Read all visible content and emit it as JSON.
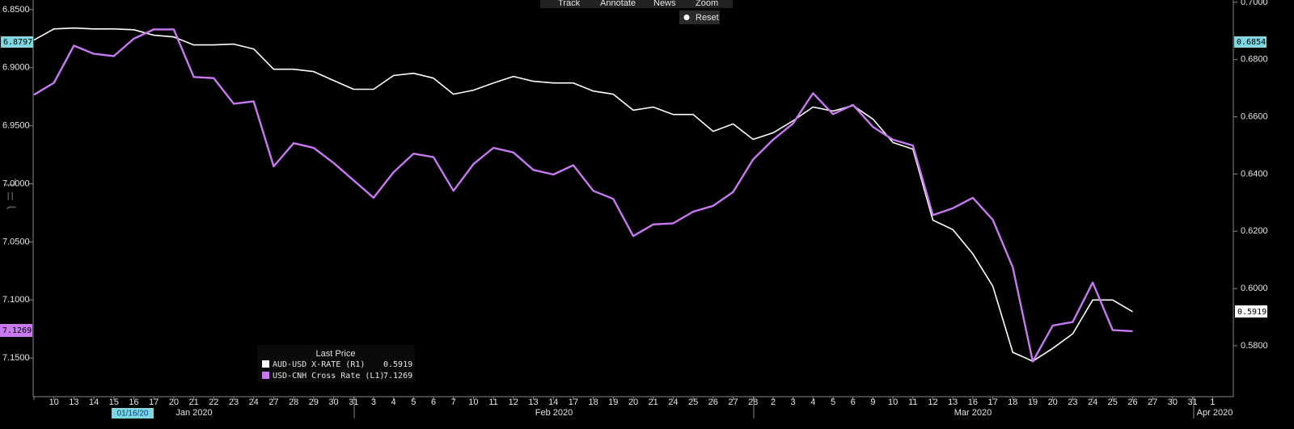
{
  "toolbar": {
    "items": [
      "Track",
      "Annotate",
      "News",
      "Zoom"
    ],
    "reset": "Reset"
  },
  "axis_label": "High = Low",
  "crosshair": {
    "date": "01/16/20",
    "left_value": 6.8797,
    "right_value": 0.6854
  },
  "legend_title": "Last Price",
  "chart_data": {
    "type": "line",
    "categories": [
      null,
      "10",
      "13",
      "14",
      "15",
      "16",
      "17",
      "20",
      "21",
      "22",
      "23",
      "24",
      "27",
      "28",
      "29",
      "30",
      "31",
      "3",
      "4",
      "5",
      "6",
      "7",
      "10",
      "11",
      "12",
      "13",
      "14",
      "17",
      "18",
      "19",
      "20",
      "21",
      "24",
      "25",
      "26",
      "27",
      "28",
      "2",
      "3",
      "4",
      "5",
      "6",
      "9",
      "10",
      "11",
      "12",
      "13",
      "16",
      "17",
      "18",
      "19",
      "20",
      "23",
      "24",
      "25",
      "26",
      "27",
      "30",
      "31",
      "1"
    ],
    "month_labels": [
      "Jan 2020",
      "Feb 2020",
      "Mar 2020",
      "Apr 2020"
    ],
    "ylim": [
      7.1826,
      6.8417
    ],
    "yticks": [
      {
        "value": 6.85,
        "label": "6.8500"
      },
      {
        "value": 6.9,
        "label": "6.9000"
      },
      {
        "value": 6.95,
        "label": "6.9500"
      },
      {
        "value": 7.0,
        "label": "7.0000"
      },
      {
        "value": 7.05,
        "label": "7.0500"
      },
      {
        "value": 7.1,
        "label": "7.1000"
      },
      {
        "value": 7.15,
        "label": "7.1500"
      }
    ],
    "y2lim": [
      0.5625,
      0.7008
    ],
    "y2ticks": [
      {
        "value": 0.58,
        "label": "0.5800"
      },
      {
        "value": 0.6,
        "label": "0.6000"
      },
      {
        "value": 0.62,
        "label": "0.6200"
      },
      {
        "value": 0.64,
        "label": "0.6400"
      },
      {
        "value": 0.66,
        "label": "0.6600"
      },
      {
        "value": 0.68,
        "label": "0.6800"
      },
      {
        "value": 0.7,
        "label": "0.7000"
      }
    ],
    "series": [
      {
        "name": "AUD-USD X-RATE  (R1)",
        "color": "#ffffff",
        "axis": "y2",
        "values": [
          0.6868,
          0.6907,
          0.691,
          0.6907,
          0.6907,
          0.6904,
          0.6885,
          0.6879,
          0.6851,
          0.6851,
          0.6854,
          0.6837,
          0.6766,
          0.6766,
          0.6758,
          0.6727,
          0.6696,
          0.6696,
          0.6744,
          0.6752,
          0.6735,
          0.6679,
          0.6693,
          0.6718,
          0.6741,
          0.6724,
          0.6718,
          0.6718,
          0.669,
          0.6679,
          0.6623,
          0.6634,
          0.6608,
          0.6608,
          0.6549,
          0.6575,
          0.6521,
          0.6544,
          0.6586,
          0.6634,
          0.662,
          0.6639,
          0.6592,
          0.651,
          0.6487,
          0.6239,
          0.6206,
          0.6121,
          0.6008,
          0.5777,
          0.5746,
          0.5791,
          0.5842,
          0.596,
          0.596,
          0.5919,
          null,
          null,
          null,
          null
        ]
      },
      {
        "name": "USD-CNH Cross Rate  (L1)",
        "color": "#c878f0",
        "axis": "y",
        "values": [
          6.9233,
          6.913,
          6.881,
          6.888,
          6.89,
          6.875,
          6.867,
          6.867,
          6.908,
          6.909,
          6.931,
          6.929,
          6.985,
          6.965,
          6.969,
          6.982,
          6.997,
          7.012,
          6.99,
          6.974,
          6.977,
          7.006,
          6.983,
          6.969,
          6.973,
          6.988,
          6.992,
          6.984,
          7.006,
          7.013,
          7.045,
          7.035,
          7.034,
          7.024,
          7.019,
          7.007,
          6.979,
          6.962,
          6.948,
          6.922,
          6.94,
          6.932,
          6.951,
          6.962,
          6.967,
          7.027,
          7.021,
          7.012,
          7.031,
          7.072,
          7.153,
          7.122,
          7.119,
          7.085,
          7.126,
          7.1269,
          null,
          null,
          null,
          null
        ]
      }
    ]
  }
}
